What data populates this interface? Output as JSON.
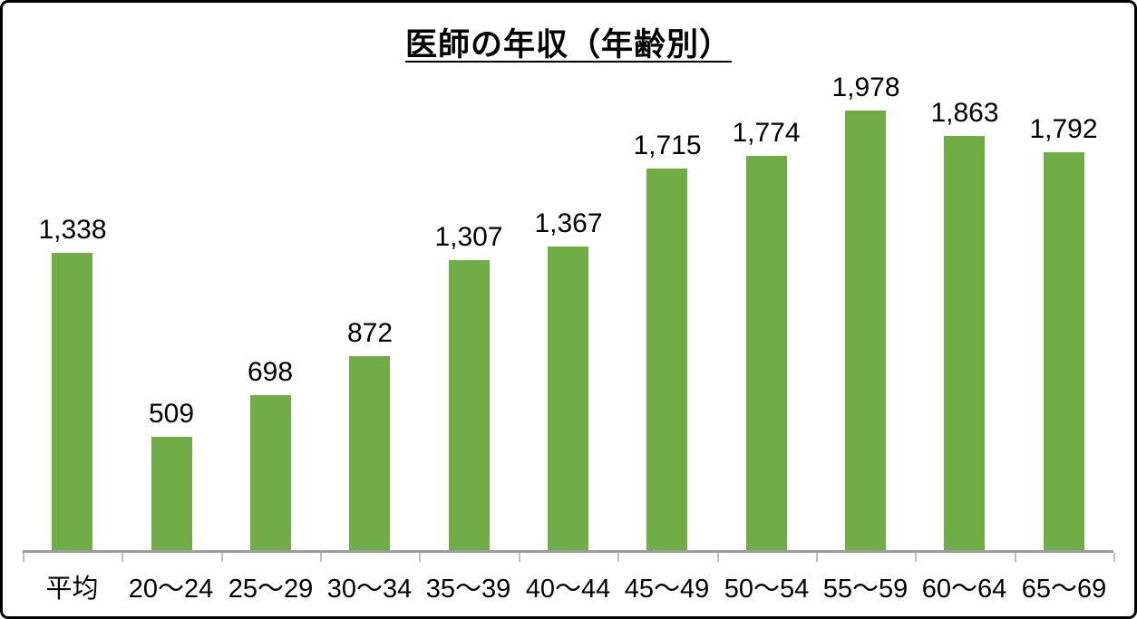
{
  "chart": {
    "title": "医師の年収（年齢別）"
  },
  "colors": {
    "bar_fill": "#70ad47",
    "axis_line": "#9e9e9e",
    "tick": "#bfbfbf",
    "text": "#000000",
    "frame_border": "#000000",
    "background": "#ffffff"
  },
  "chart_data": {
    "type": "bar",
    "title": "医師の年収（年齢別）",
    "categories": [
      "平均",
      "20〜24",
      "25〜29",
      "30〜34",
      "35〜39",
      "40〜44",
      "45〜49",
      "50〜54",
      "55〜59",
      "60〜64",
      "65〜69"
    ],
    "values": [
      1338,
      509,
      698,
      872,
      1307,
      1367,
      1715,
      1774,
      1978,
      1863,
      1792
    ],
    "value_labels": [
      "1,338",
      "509",
      "698",
      "872",
      "1,307",
      "1,367",
      "1,715",
      "1,774",
      "1,978",
      "1,863",
      "1,792"
    ],
    "xlabel": "",
    "ylabel": "",
    "ylim": [
      0,
      2200
    ],
    "grid": false,
    "legend": "none",
    "y_axis_visible": false,
    "data_labels": "above-bars",
    "bar_color": "#70ad47"
  }
}
